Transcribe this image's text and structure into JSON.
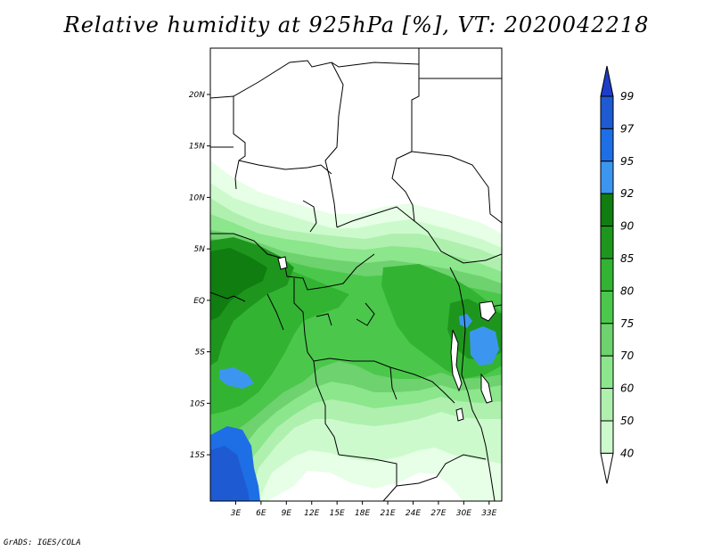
{
  "title": "Relative humidity at 925hPa [%], VT: 2020042218",
  "credit": "GrADS: IGES/COLA",
  "map": {
    "lat_ticks": [
      "20N",
      "15N",
      "10N",
      "5N",
      "EQ",
      "5S",
      "10S",
      "15S"
    ],
    "lon_ticks": [
      "3E",
      "6E",
      "9E",
      "12E",
      "15E",
      "18E",
      "21E",
      "24E",
      "27E",
      "30E",
      "33E"
    ],
    "lat_range": [
      -19.5,
      24.5
    ],
    "lon_range": [
      0,
      34.5
    ]
  },
  "colorbar": {
    "labels": [
      "99",
      "97",
      "95",
      "92",
      "90",
      "85",
      "80",
      "75",
      "70",
      "60",
      "50",
      "40"
    ],
    "colors": [
      "#1e5ad2",
      "#1e6ee6",
      "#3c96f0",
      "#0f7d0f",
      "#1e961e",
      "#32b432",
      "#4bc84b",
      "#6ed26e",
      "#8ce68c",
      "#aff0af",
      "#cdfacd",
      "#e6ffe6"
    ],
    "under_color": "#ffffff",
    "over_color": "#1e3cc8"
  }
}
